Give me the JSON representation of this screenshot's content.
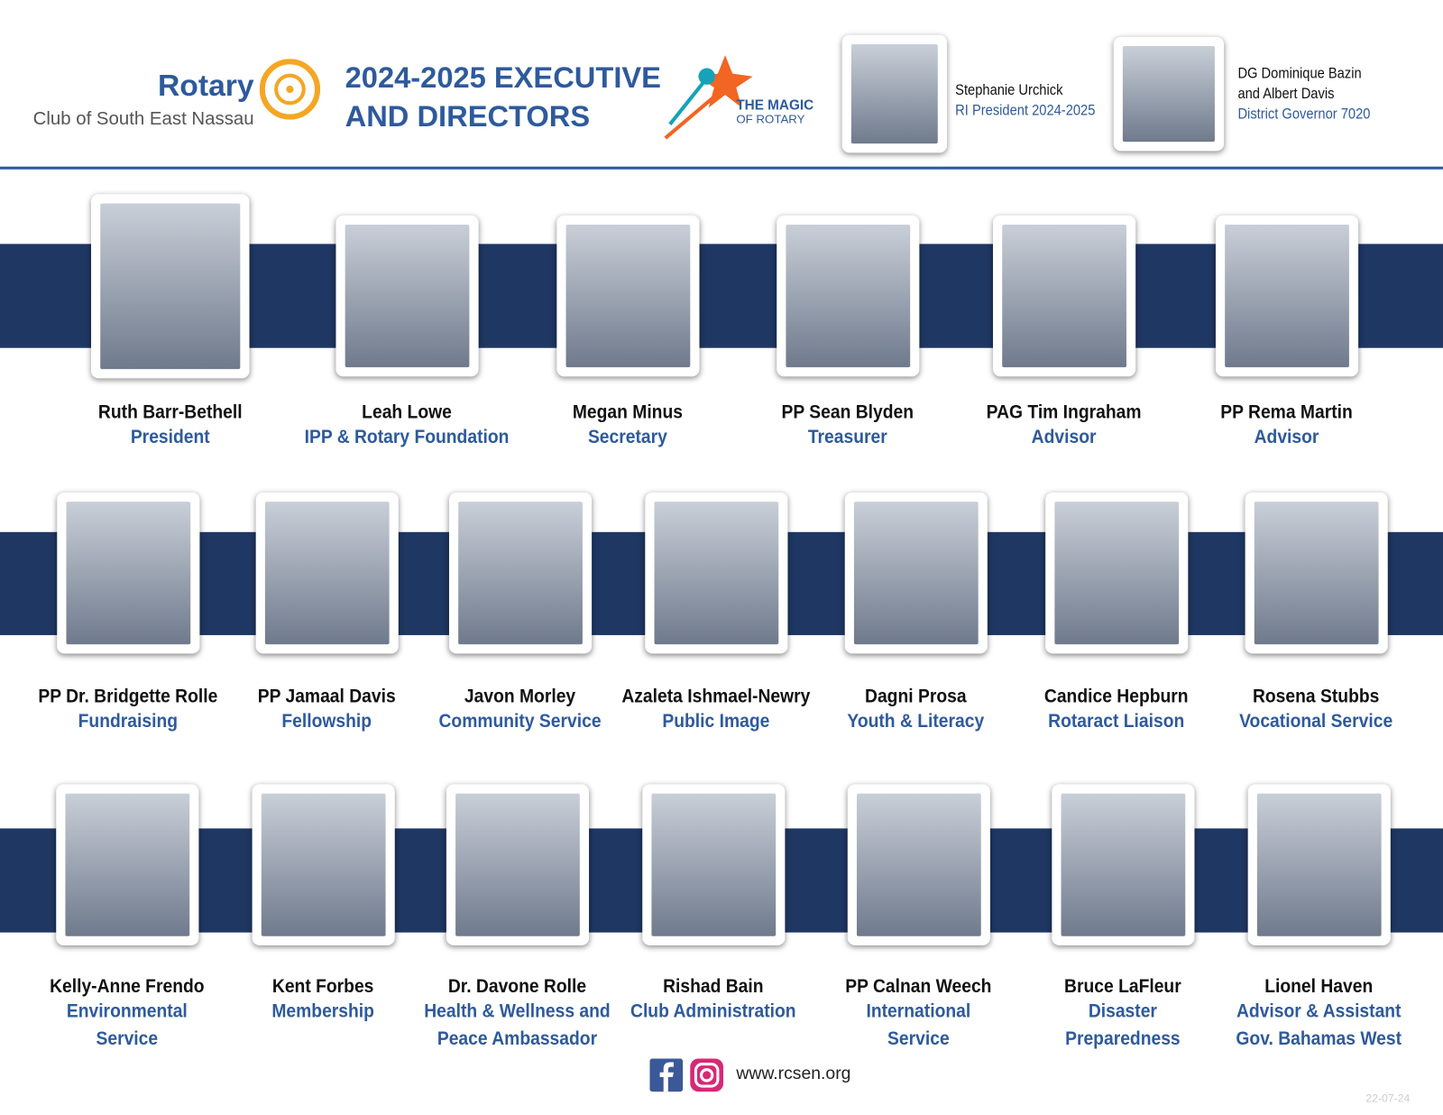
{
  "header": {
    "logo": {
      "name": "Rotary",
      "club": "Club of South East Nassau"
    },
    "title": [
      "2024-2025 EXECUTIVE",
      "AND DIRECTORS"
    ],
    "theme": [
      "THE MAGIC",
      "OF ROTARY"
    ],
    "leaders": [
      {
        "name": [
          "Stephanie Urchick"
        ],
        "role": [
          "RI President 2024-2025"
        ]
      },
      {
        "name": [
          "DG Dominique Bazin",
          "and  Albert Davis"
        ],
        "role": [
          "District Governor 7020"
        ]
      }
    ]
  },
  "rows": [
    [
      {
        "name": "Ruth Barr-Bethell",
        "role": [
          "President"
        ]
      },
      {
        "name": "Leah Lowe",
        "role": [
          "IPP & Rotary Foundation"
        ]
      },
      {
        "name": "Megan Minus",
        "role": [
          "Secretary"
        ]
      },
      {
        "name": "PP Sean Blyden",
        "role": [
          "Treasurer"
        ]
      },
      {
        "name": "PAG Tim Ingraham",
        "role": [
          "Advisor"
        ]
      },
      {
        "name": "PP Rema Martin",
        "role": [
          "Advisor"
        ]
      }
    ],
    [
      {
        "name": "PP Dr. Bridgette Rolle",
        "role": [
          "Fundraising"
        ]
      },
      {
        "name": "PP Jamaal Davis",
        "role": [
          "Fellowship"
        ]
      },
      {
        "name": "Javon Morley",
        "role": [
          "Community Service"
        ]
      },
      {
        "name": "Azaleta Ishmael-Newry",
        "role": [
          "Public Image"
        ]
      },
      {
        "name": "Dagni Prosa",
        "role": [
          "Youth & Literacy"
        ]
      },
      {
        "name": "Candice Hepburn",
        "role": [
          "Rotaract Liaison"
        ]
      },
      {
        "name": "Rosena Stubbs",
        "role": [
          "Vocational Service"
        ]
      }
    ],
    [
      {
        "name": "Kelly-Anne Frendo",
        "role": [
          "Environmental",
          "Service"
        ]
      },
      {
        "name": "Kent Forbes",
        "role": [
          "Membership"
        ]
      },
      {
        "name": "Dr. Davone Rolle",
        "role": [
          "Health & Wellness and",
          "Peace Ambassador"
        ]
      },
      {
        "name": "Rishad Bain",
        "role": [
          "Club Administration"
        ]
      },
      {
        "name": "PP Calnan Weech",
        "role": [
          "International",
          "Service"
        ]
      },
      {
        "name": "Bruce LaFleur",
        "role": [
          "Disaster",
          "Preparedness"
        ]
      },
      {
        "name": "Lionel Haven",
        "role": [
          "Advisor & Assistant",
          "Gov. Bahamas West"
        ]
      }
    ]
  ],
  "footer": {
    "url": "www.rcsen.org",
    "date": "22-07-24"
  }
}
